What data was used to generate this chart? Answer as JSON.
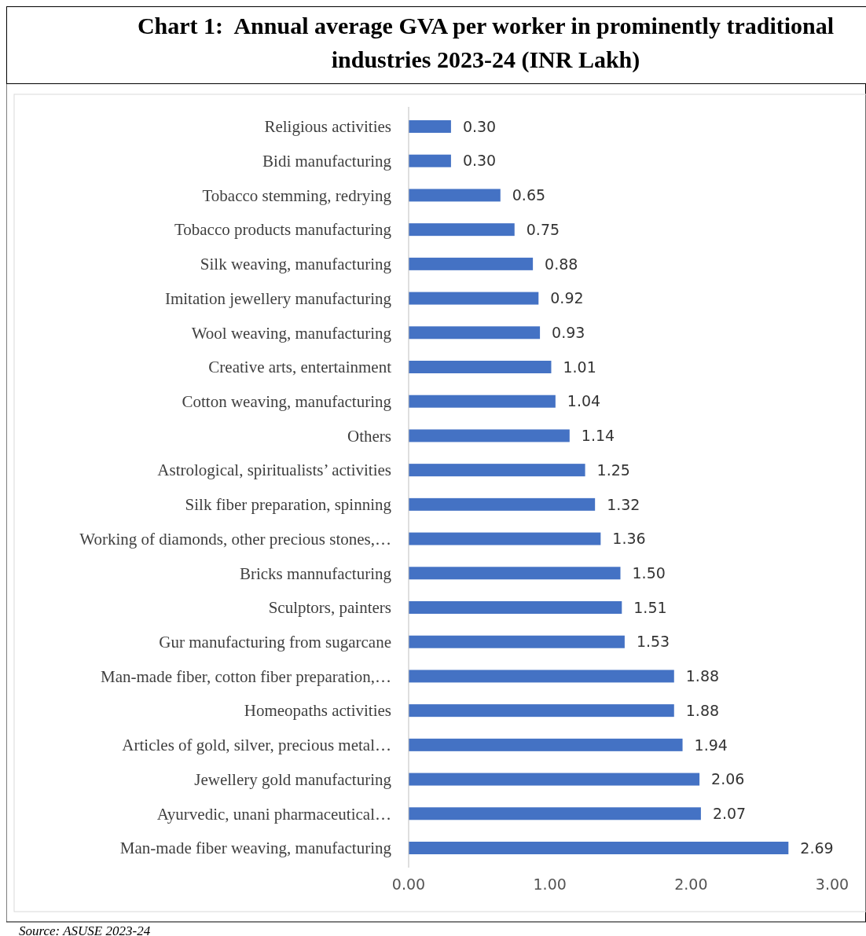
{
  "chart_data": {
    "type": "bar",
    "orientation": "horizontal",
    "title": "Chart 1:  Annual average GVA per worker in prominently traditional industries 2023-24 (INR Lakh)",
    "categories": [
      "Religious activities",
      "Bidi manufacturing",
      "Tobacco stemming, redrying",
      "Tobacco products manufacturing",
      "Silk weaving, manufacturing",
      "Imitation jewellery manufacturing",
      "Wool weaving, manufacturing",
      "Creative arts, entertainment",
      "Cotton weaving, manufacturing",
      "Others",
      "Astrological, spiritualists’ activities",
      "Silk fiber preparation, spinning",
      "Working of diamonds, other precious stones,…",
      "Bricks mannufacturing",
      "Sculptors, painters",
      "Gur manufacturing from sugarcane",
      "Man-made fiber, cotton fiber preparation,…",
      "Homeopaths activities",
      "Articles of gold, silver, precious metal…",
      "Jewellery gold manufacturing",
      "Ayurvedic, unani pharmaceutical…",
      "Man-made fiber weaving, manufacturing"
    ],
    "values": [
      0.3,
      0.3,
      0.65,
      0.75,
      0.88,
      0.92,
      0.93,
      1.01,
      1.04,
      1.14,
      1.25,
      1.32,
      1.36,
      1.5,
      1.51,
      1.53,
      1.88,
      1.88,
      1.94,
      2.06,
      2.07,
      2.69
    ],
    "value_labels": [
      "0.30",
      "0.30",
      "0.65",
      "0.75",
      "0.88",
      "0.92",
      "0.93",
      "1.01",
      "1.04",
      "1.14",
      "1.25",
      "1.32",
      "1.36",
      "1.50",
      "1.51",
      "1.53",
      "1.88",
      "1.88",
      "1.94",
      "2.06",
      "2.07",
      "2.69"
    ],
    "color": "#4472c4",
    "xlim": [
      0,
      3
    ],
    "xticks": [
      {
        "value": 0,
        "label": "0.00"
      },
      {
        "value": 1,
        "label": "1.00"
      },
      {
        "value": 2,
        "label": "2.00"
      },
      {
        "value": 3,
        "label": "3.00"
      }
    ],
    "grid": false,
    "annotations": [
      "Source: ASUSE 2023-24"
    ]
  }
}
